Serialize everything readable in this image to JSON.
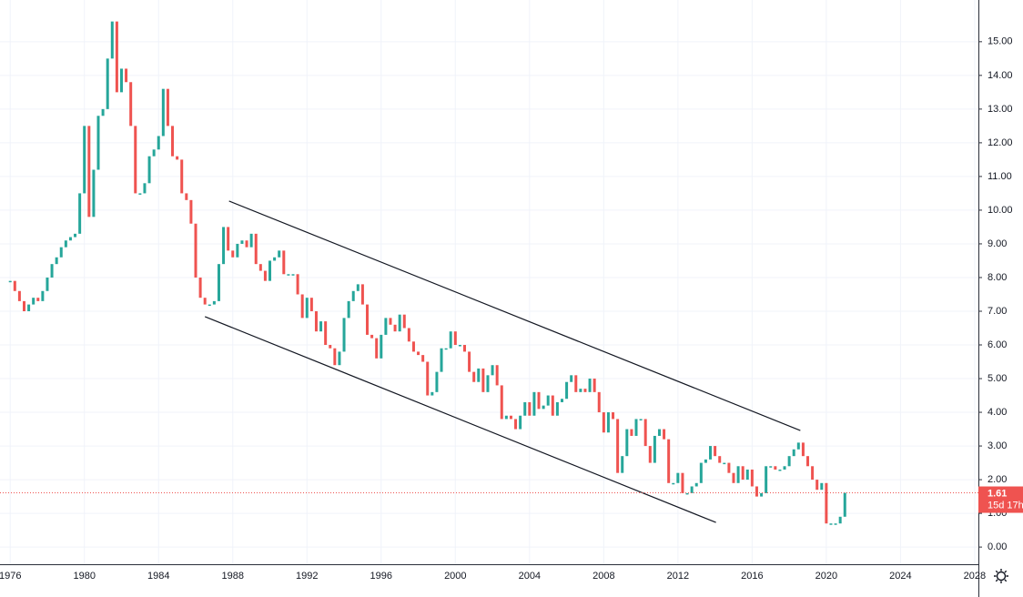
{
  "chart_data": {
    "type": "price_bars",
    "up_color": "#26a69a",
    "down_color": "#ef5350",
    "xlim": [
      1975.45,
      2028.2
    ],
    "ylim": [
      -0.51,
      15.86
    ],
    "xticks": [
      1976,
      1980,
      1984,
      1988,
      1992,
      1996,
      2000,
      2004,
      2008,
      2012,
      2016,
      2020,
      2024,
      2028
    ],
    "yticks": [
      {
        "value": 0,
        "label": "0.00"
      },
      {
        "value": 1,
        "label": "1.00"
      },
      {
        "value": 2,
        "label": "2.00"
      },
      {
        "value": 3,
        "label": "3.00"
      },
      {
        "value": 4,
        "label": "4.00"
      },
      {
        "value": 5,
        "label": "5.00"
      },
      {
        "value": 6,
        "label": "6.00"
      },
      {
        "value": 7,
        "label": "7.00"
      },
      {
        "value": 8,
        "label": "8.00"
      },
      {
        "value": 9,
        "label": "9.00"
      },
      {
        "value": 10,
        "label": "10.00"
      },
      {
        "value": 11,
        "label": "11.00"
      },
      {
        "value": 12,
        "label": "12.00"
      },
      {
        "value": 13,
        "label": "13.00"
      },
      {
        "value": 14,
        "label": "14.00"
      },
      {
        "value": 15,
        "label": "15.00"
      }
    ],
    "grid": true,
    "last_price": 1.61,
    "countdown": "15d 17h",
    "trend_lines": [
      {
        "x": [
          1987.8,
          2018.6
        ],
        "y": [
          10.27,
          3.46
        ]
      },
      {
        "x": [
          1986.5,
          2014.05
        ],
        "y": [
          6.84,
          0.73
        ]
      }
    ],
    "x": [
      1976,
      1976.25,
      1976.5,
      1976.75,
      1977,
      1977.25,
      1977.5,
      1977.75,
      1978,
      1978.25,
      1978.5,
      1978.75,
      1979,
      1979.25,
      1979.5,
      1979.75,
      1980,
      1980.25,
      1980.5,
      1980.75,
      1981,
      1981.25,
      1981.5,
      1981.75,
      1982,
      1982.25,
      1982.5,
      1982.75,
      1983,
      1983.25,
      1983.5,
      1983.75,
      1984,
      1984.25,
      1984.5,
      1984.75,
      1985,
      1985.25,
      1985.5,
      1985.75,
      1986,
      1986.25,
      1986.5,
      1986.75,
      1987,
      1987.25,
      1987.5,
      1987.75,
      1988,
      1988.25,
      1988.5,
      1988.75,
      1989,
      1989.25,
      1989.5,
      1989.75,
      1990,
      1990.25,
      1990.5,
      1990.75,
      1991,
      1991.25,
      1991.5,
      1991.75,
      1992,
      1992.25,
      1992.5,
      1992.75,
      1993,
      1993.25,
      1993.5,
      1993.75,
      1994,
      1994.25,
      1994.5,
      1994.75,
      1995,
      1995.25,
      1995.5,
      1995.75,
      1996,
      1996.25,
      1996.5,
      1996.75,
      1997,
      1997.25,
      1997.5,
      1997.75,
      1998,
      1998.25,
      1998.5,
      1998.75,
      1999,
      1999.25,
      1999.5,
      1999.75,
      2000,
      2000.25,
      2000.5,
      2000.75,
      2001,
      2001.25,
      2001.5,
      2001.75,
      2002,
      2002.25,
      2002.5,
      2002.75,
      2003,
      2003.25,
      2003.5,
      2003.75,
      2004,
      2004.25,
      2004.5,
      2004.75,
      2005,
      2005.25,
      2005.5,
      2005.75,
      2006,
      2006.25,
      2006.5,
      2006.75,
      2007,
      2007.25,
      2007.5,
      2007.75,
      2008,
      2008.25,
      2008.5,
      2008.75,
      2009,
      2009.25,
      2009.5,
      2009.75,
      2010,
      2010.25,
      2010.5,
      2010.75,
      2011,
      2011.25,
      2011.5,
      2011.75,
      2012,
      2012.25,
      2012.5,
      2012.75,
      2013,
      2013.25,
      2013.5,
      2013.75,
      2014,
      2014.25,
      2014.5,
      2014.75,
      2015,
      2015.25,
      2015.5,
      2015.75,
      2016,
      2016.25,
      2016.5,
      2016.75,
      2017,
      2017.25,
      2017.5,
      2017.75,
      2018,
      2018.25,
      2018.5,
      2018.75,
      2019,
      2019.25,
      2019.5,
      2019.75,
      2020,
      2020.25,
      2020.5,
      2020.75,
      2021
    ],
    "values": [
      7.9,
      7.6,
      7.3,
      7.0,
      7.2,
      7.4,
      7.3,
      7.6,
      8.0,
      8.4,
      8.6,
      8.9,
      9.1,
      9.2,
      9.3,
      10.5,
      12.5,
      9.8,
      11.2,
      12.8,
      13.0,
      14.5,
      15.6,
      13.5,
      14.2,
      13.8,
      12.5,
      10.5,
      10.5,
      10.8,
      11.6,
      11.8,
      12.2,
      13.6,
      12.5,
      11.6,
      11.5,
      10.5,
      10.3,
      9.6,
      8.0,
      7.4,
      7.2,
      7.2,
      7.3,
      8.4,
      9.5,
      8.8,
      8.6,
      9.0,
      9.1,
      8.9,
      9.3,
      8.4,
      8.2,
      7.9,
      8.5,
      8.6,
      8.8,
      8.1,
      8.1,
      8.1,
      7.5,
      6.8,
      7.4,
      7.0,
      6.4,
      6.7,
      6.0,
      5.9,
      5.4,
      5.8,
      6.8,
      7.3,
      7.6,
      7.8,
      7.2,
      6.3,
      6.2,
      5.6,
      6.3,
      6.8,
      6.6,
      6.4,
      6.9,
      6.5,
      6.1,
      5.8,
      5.7,
      5.5,
      4.5,
      4.6,
      5.2,
      5.9,
      5.9,
      6.4,
      6.0,
      6.0,
      5.8,
      5.2,
      4.9,
      5.3,
      4.6,
      5.1,
      5.4,
      4.8,
      3.8,
      3.9,
      3.8,
      3.5,
      3.9,
      4.3,
      3.9,
      4.6,
      4.1,
      4.2,
      4.5,
      3.9,
      4.3,
      4.4,
      4.9,
      5.1,
      4.6,
      4.7,
      4.6,
      5.0,
      4.6,
      4.0,
      3.4,
      4.0,
      3.8,
      2.2,
      2.7,
      3.5,
      3.3,
      3.8,
      3.8,
      3.0,
      2.5,
      3.3,
      3.5,
      3.2,
      1.9,
      1.9,
      2.2,
      1.6,
      1.6,
      1.8,
      1.9,
      2.5,
      2.6,
      3.0,
      2.7,
      2.5,
      2.5,
      2.2,
      1.9,
      2.4,
      2.0,
      2.3,
      1.8,
      1.5,
      1.6,
      2.4,
      2.4,
      2.3,
      2.3,
      2.4,
      2.7,
      2.9,
      3.1,
      2.7,
      2.4,
      2.0,
      1.7,
      1.9,
      0.7,
      0.7,
      0.7,
      0.9,
      1.61
    ]
  }
}
